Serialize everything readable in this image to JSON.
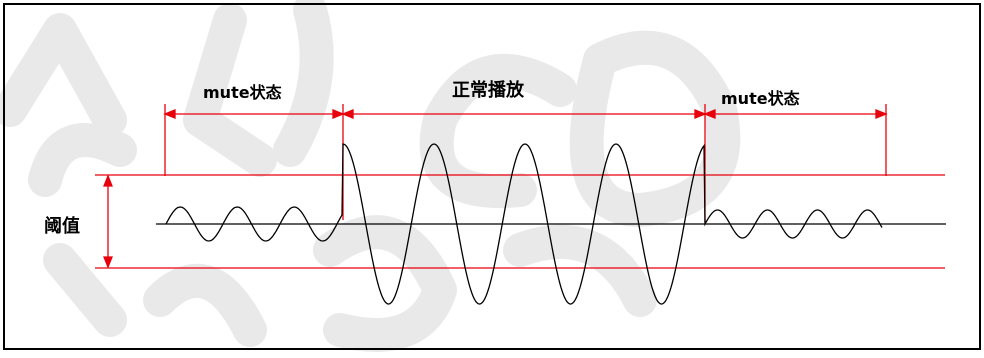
{
  "labels": {
    "mute_left": "mute状态",
    "normal_play": "正常播放",
    "mute_right": "mute状态",
    "threshold": "阈值"
  },
  "watermark": "www.eoSound",
  "colors": {
    "frame": "#000000",
    "marker": "#e8000b",
    "wave": "#000000",
    "watermark": "#e9e9e9",
    "background": "#ffffff"
  }
}
